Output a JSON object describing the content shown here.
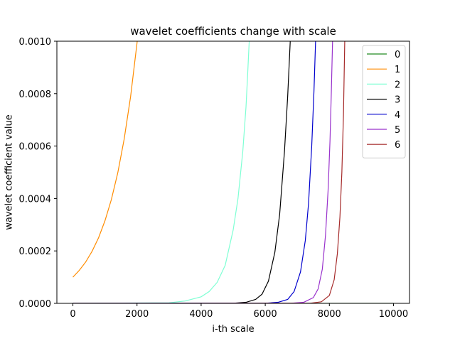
{
  "chart_data": {
    "type": "line",
    "title": "wavelet coefficients change with scale",
    "xlabel": "i-th scale",
    "ylabel": "wavelet coefficient value",
    "xlim": [
      -500,
      10500
    ],
    "ylim": [
      0,
      0.001
    ],
    "xticks": [
      0,
      2000,
      4000,
      6000,
      8000,
      10000
    ],
    "xtick_labels": [
      "0",
      "2000",
      "4000",
      "6000",
      "8000",
      "10000"
    ],
    "yticks": [
      0,
      0.0002,
      0.0004,
      0.0006,
      0.0008,
      0.001
    ],
    "ytick_labels": [
      "0.0000",
      "0.0002",
      "0.0004",
      "0.0006",
      "0.0008",
      "0.0010"
    ],
    "grid": false,
    "legend_position": "top-right",
    "series": [
      {
        "name": "0",
        "color": "#228b22",
        "x": [
          0,
          2000,
          4000,
          6000,
          8000,
          10000
        ],
        "y": [
          0,
          0,
          0,
          0,
          0,
          0
        ]
      },
      {
        "name": "1",
        "color": "#ff8c00",
        "x": [
          0,
          200,
          400,
          600,
          800,
          1000,
          1200,
          1400,
          1600,
          1800,
          2000,
          2040
        ],
        "y": [
          0.0001,
          0.000126,
          0.000158,
          0.000199,
          0.00025,
          0.000315,
          0.000396,
          0.000498,
          0.000627,
          0.000789,
          0.000993,
          0.00104
        ]
      },
      {
        "name": "2",
        "color": "#7fffd4",
        "x": [
          0,
          3000,
          3500,
          4000,
          4250,
          4500,
          4750,
          5000,
          5150,
          5300,
          5400,
          5450,
          5500
        ],
        "y": [
          0,
          2e-06,
          9e-06,
          2.5e-05,
          4.5e-05,
          8e-05,
          0.000145,
          0.00028,
          0.0004,
          0.00058,
          0.00075,
          0.00087,
          0.001
        ]
      },
      {
        "name": "3",
        "color": "#000000",
        "x": [
          0,
          5000,
          5400,
          5700,
          5900,
          6100,
          6300,
          6450,
          6600,
          6700,
          6780
        ],
        "y": [
          0,
          5e-07,
          4e-06,
          1.5e-05,
          3.5e-05,
          8.5e-05,
          0.000195,
          0.00034,
          0.00058,
          0.00079,
          0.001
        ]
      },
      {
        "name": "4",
        "color": "#0000cd",
        "x": [
          0,
          6000,
          6400,
          6700,
          6900,
          7100,
          7250,
          7350,
          7450,
          7520,
          7570
        ],
        "y": [
          0,
          5e-07,
          4e-06,
          1.5e-05,
          4.5e-05,
          0.00012,
          0.00024,
          0.00038,
          0.0006,
          0.00081,
          0.001
        ]
      },
      {
        "name": "5",
        "color": "#9932cc",
        "x": [
          0,
          6800,
          7200,
          7500,
          7650,
          7780,
          7880,
          7960,
          8020,
          8060,
          8100
        ],
        "y": [
          0,
          5e-07,
          4e-06,
          2.2e-05,
          5.5e-05,
          0.00013,
          0.00026,
          0.00043,
          0.00062,
          0.0008,
          0.001
        ]
      },
      {
        "name": "6",
        "color": "#a52a2a",
        "x": [
          0,
          7400,
          7750,
          8000,
          8150,
          8250,
          8330,
          8390,
          8440,
          8480
        ],
        "y": [
          0,
          5e-07,
          6e-06,
          3e-05,
          9e-05,
          0.00019,
          0.00033,
          0.0005,
          0.00072,
          0.001
        ]
      }
    ]
  }
}
